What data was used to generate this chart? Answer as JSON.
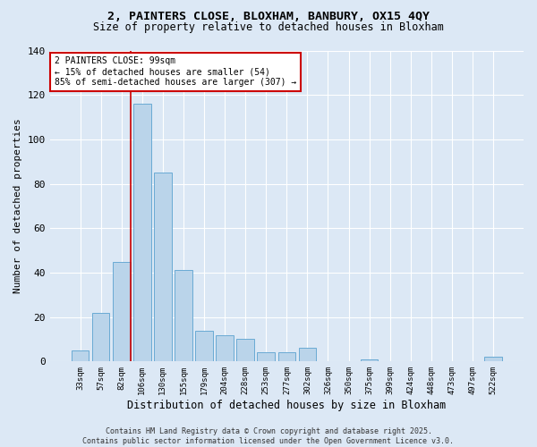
{
  "title1": "2, PAINTERS CLOSE, BLOXHAM, BANBURY, OX15 4QY",
  "title2": "Size of property relative to detached houses in Bloxham",
  "xlabel": "Distribution of detached houses by size in Bloxham",
  "ylabel": "Number of detached properties",
  "bar_color": "#bad4ea",
  "bar_edge_color": "#6aaad4",
  "background_color": "#dce8f5",
  "grid_color": "#ffffff",
  "categories": [
    "33sqm",
    "57sqm",
    "82sqm",
    "106sqm",
    "130sqm",
    "155sqm",
    "179sqm",
    "204sqm",
    "228sqm",
    "253sqm",
    "277sqm",
    "302sqm",
    "326sqm",
    "350sqm",
    "375sqm",
    "399sqm",
    "424sqm",
    "448sqm",
    "473sqm",
    "497sqm",
    "522sqm"
  ],
  "values": [
    5,
    22,
    45,
    116,
    85,
    41,
    14,
    12,
    10,
    4,
    4,
    6,
    0,
    0,
    1,
    0,
    0,
    0,
    0,
    0,
    2
  ],
  "property_bin_index": 2,
  "annotation_text": "2 PAINTERS CLOSE: 99sqm\n← 15% of detached houses are smaller (54)\n85% of semi-detached houses are larger (307) →",
  "vline_color": "#cc0000",
  "annotation_box_color": "#ffffff",
  "annotation_box_edge": "#cc0000",
  "footer_text": "Contains HM Land Registry data © Crown copyright and database right 2025.\nContains public sector information licensed under the Open Government Licence v3.0.",
  "ylim": [
    0,
    140
  ],
  "yticks": [
    0,
    20,
    40,
    60,
    80,
    100,
    120,
    140
  ]
}
